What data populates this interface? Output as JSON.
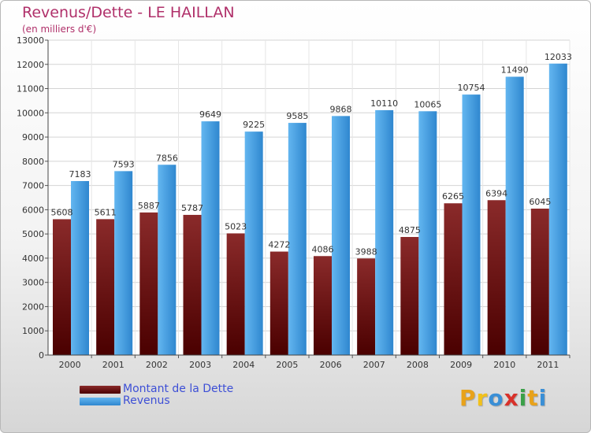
{
  "header": {
    "title": "Revenus/Dette - LE HAILLAN",
    "subtitle": "(en milliers d'€)"
  },
  "chart_data": {
    "type": "bar",
    "categories": [
      "2000",
      "2001",
      "2002",
      "2003",
      "2004",
      "2005",
      "2006",
      "2007",
      "2008",
      "2009",
      "2010",
      "2011"
    ],
    "series": [
      {
        "name": "Montant de la Dette",
        "color": "#7b1a1f",
        "values": [
          5608,
          5611,
          5887,
          5787,
          5023,
          4272,
          4086,
          3988,
          4875,
          6265,
          6394,
          6045
        ]
      },
      {
        "name": "Revenus",
        "color": "#4aa3e6",
        "values": [
          7183,
          7593,
          7856,
          9649,
          9225,
          9585,
          9868,
          10110,
          10065,
          10754,
          11490,
          12033
        ]
      }
    ],
    "ylim": [
      0,
      13000
    ],
    "yticks": [
      0,
      1000,
      2000,
      3000,
      4000,
      5000,
      6000,
      7000,
      8000,
      9000,
      10000,
      11000,
      12000,
      13000
    ],
    "grid": true,
    "legend_position": "bottom-left"
  },
  "logo": {
    "letters": [
      "P",
      "r",
      "o",
      "x",
      "i",
      "t",
      "i"
    ],
    "colors": [
      "#e8a21a",
      "#f2c11a",
      "#3a8fd6",
      "#d8312a",
      "#3aa048",
      "#e8a21a",
      "#3a8fd6"
    ]
  }
}
